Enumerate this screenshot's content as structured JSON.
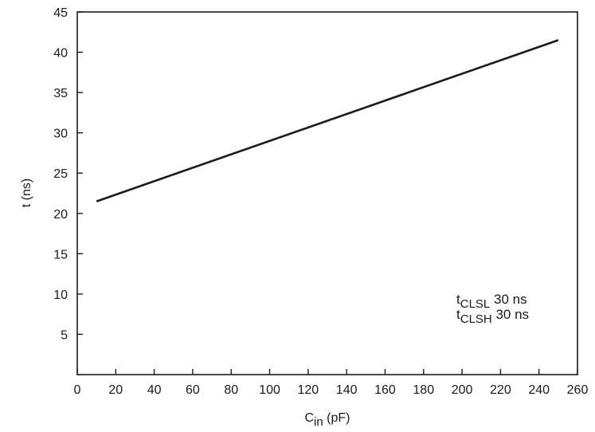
{
  "chart_data": {
    "type": "line",
    "title": "",
    "xlabel": {
      "main": "C",
      "sub": "in",
      "suffix": " (pF)"
    },
    "ylabel": "t (ns)",
    "xlim": [
      0,
      260
    ],
    "ylim": [
      0,
      45
    ],
    "x_ticks": [
      0,
      20,
      40,
      60,
      80,
      100,
      120,
      140,
      160,
      180,
      200,
      220,
      240,
      260
    ],
    "y_ticks": [
      5,
      10,
      15,
      20,
      25,
      30,
      35,
      40,
      45
    ],
    "grid": false,
    "series": [
      {
        "x": [
          10,
          250
        ],
        "y": [
          21.5,
          41.5
        ],
        "color": "#1a1a1a"
      }
    ],
    "annotations": [
      {
        "main": "t",
        "sub": "CLSL",
        "suffix": " 30 ns"
      },
      {
        "main": "t",
        "sub": "CLSH",
        "suffix": " 30 ns"
      }
    ]
  }
}
